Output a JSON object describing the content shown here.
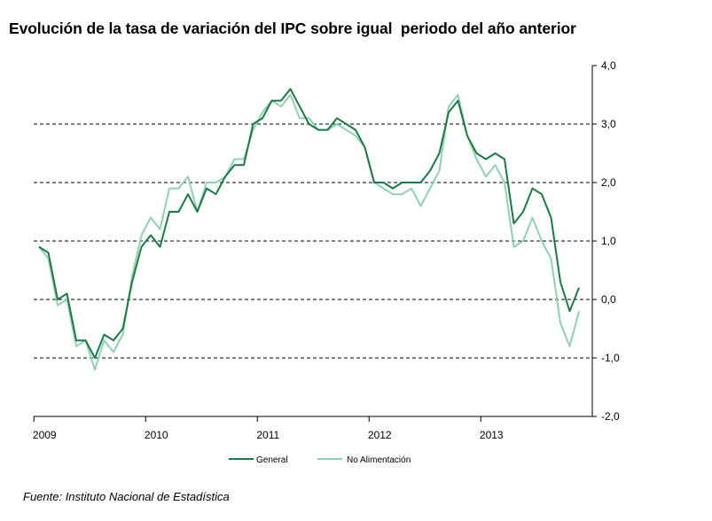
{
  "chart_data": {
    "type": "line",
    "title": "Evolución de la tasa de variación del IPC sobre igual  periodo del año anterior",
    "source": "Fuente: Instituto Nacional de Estadística",
    "ylim": [
      -2.0,
      4.0
    ],
    "yticks": [
      4.0,
      3.0,
      2.0,
      1.0,
      0.0,
      -1.0,
      -2.0
    ],
    "ytick_labels": [
      "4,0",
      "3,0",
      "2,0",
      "1,0",
      "0,0",
      "-1,0",
      "-2,0"
    ],
    "gridlines_at": [
      3.0,
      2.0,
      1.0,
      0.0,
      -1.0
    ],
    "grid_style": "dashed",
    "y_axis_position": "right",
    "legend_position": "bottom",
    "x_labels": [
      "2009",
      "2010",
      "2011",
      "2012",
      "2013"
    ],
    "x_start": "2009-01",
    "series": [
      {
        "name": "General",
        "color": "#1a7a44",
        "values": [
          0.9,
          0.8,
          0.0,
          0.1,
          -0.7,
          -0.7,
          -1.0,
          -0.6,
          -0.7,
          -0.5,
          0.3,
          0.9,
          1.1,
          0.9,
          1.5,
          1.5,
          1.8,
          1.5,
          1.9,
          1.8,
          2.1,
          2.3,
          2.3,
          3.0,
          3.1,
          3.4,
          3.4,
          3.6,
          3.3,
          3.0,
          2.9,
          2.9,
          3.1,
          3.0,
          2.9,
          2.6,
          2.0,
          2.0,
          1.9,
          2.0,
          2.0,
          2.0,
          2.2,
          2.5,
          3.2,
          3.4,
          2.8,
          2.5,
          2.4,
          2.5,
          2.4,
          1.3,
          1.5,
          1.9,
          1.8,
          1.4,
          0.3,
          -0.2,
          0.2
        ]
      },
      {
        "name": "No Alimentación",
        "color": "#8fd1b2",
        "values": [
          0.9,
          0.7,
          -0.1,
          0.0,
          -0.8,
          -0.7,
          -1.2,
          -0.7,
          -0.9,
          -0.6,
          0.4,
          1.1,
          1.4,
          1.2,
          1.9,
          1.9,
          2.1,
          1.5,
          2.0,
          2.0,
          2.1,
          2.4,
          2.4,
          2.9,
          3.2,
          3.4,
          3.3,
          3.5,
          3.1,
          3.1,
          2.9,
          2.9,
          3.0,
          2.9,
          2.8,
          2.6,
          2.0,
          1.9,
          1.8,
          1.8,
          1.9,
          1.6,
          1.9,
          2.2,
          3.3,
          3.5,
          2.8,
          2.4,
          2.1,
          2.3,
          2.0,
          0.9,
          1.0,
          1.4,
          1.0,
          0.7,
          -0.4,
          -0.8,
          -0.2
        ]
      }
    ]
  }
}
